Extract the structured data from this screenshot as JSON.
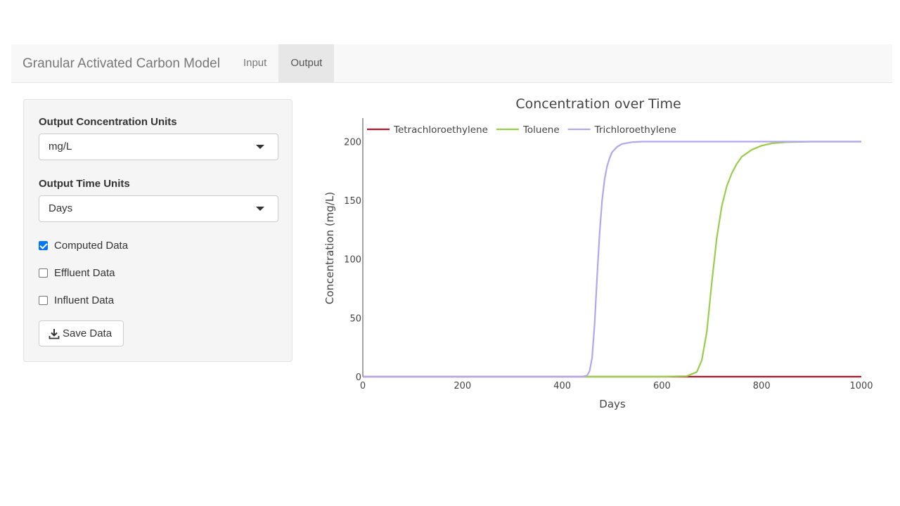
{
  "navbar": {
    "brand": "Granular Activated Carbon Model",
    "tabs": [
      {
        "label": "Input",
        "active": false
      },
      {
        "label": "Output",
        "active": true
      }
    ]
  },
  "sidebar": {
    "conc_units_label": "Output Concentration Units",
    "conc_units_value": "mg/L",
    "time_units_label": "Output Time Units",
    "time_units_value": "Days",
    "checkboxes": [
      {
        "label": "Computed Data",
        "checked": true
      },
      {
        "label": "Effluent Data",
        "checked": false
      },
      {
        "label": "Influent Data",
        "checked": false
      }
    ],
    "save_label": "Save Data",
    "save_icon": "download-icon"
  },
  "chart_data": {
    "type": "line",
    "title": "Concentration over Time",
    "xlabel": "Days",
    "ylabel": "Concentration (mg/L)",
    "xlim": [
      0,
      1000
    ],
    "ylim": [
      0,
      220
    ],
    "xticks": [
      0,
      200,
      400,
      600,
      800,
      1000
    ],
    "yticks": [
      0,
      50,
      100,
      150,
      200
    ],
    "grid": false,
    "legend_position": "top-left",
    "series": [
      {
        "name": "Tetrachloroethylene",
        "color": "#b2182b",
        "x": [
          0,
          200,
          400,
          600,
          800,
          1000
        ],
        "y": [
          0,
          0,
          0,
          0,
          0,
          0
        ]
      },
      {
        "name": "Toluene",
        "color": "#9acd4c",
        "x": [
          0,
          200,
          400,
          600,
          650,
          670,
          680,
          690,
          700,
          710,
          720,
          730,
          740,
          750,
          760,
          780,
          800,
          820,
          850,
          900,
          1000
        ],
        "y": [
          0,
          0,
          0,
          0,
          0.5,
          4,
          14,
          38,
          80,
          118,
          145,
          162,
          173,
          181,
          187,
          193,
          196.5,
          198.5,
          199.5,
          200,
          200
        ]
      },
      {
        "name": "Trichloroethylene",
        "color": "#b3a6f0",
        "x": [
          0,
          200,
          400,
          440,
          450,
          455,
          460,
          465,
          470,
          475,
          480,
          485,
          490,
          495,
          500,
          510,
          520,
          540,
          560,
          600,
          800,
          1000
        ],
        "y": [
          0,
          0,
          0,
          0,
          1,
          5,
          16,
          45,
          85,
          122,
          150,
          168,
          179,
          186,
          191,
          195.5,
          198,
          199.5,
          200,
          200,
          200,
          200
        ]
      }
    ]
  }
}
